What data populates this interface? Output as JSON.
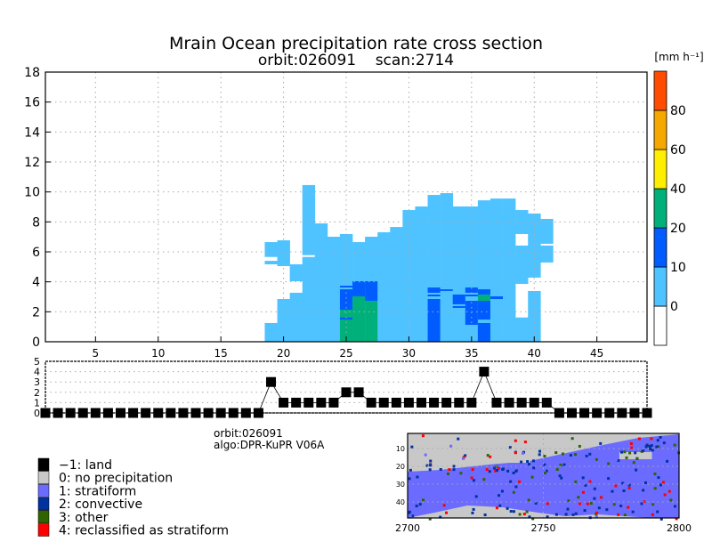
{
  "chart_data": [
    {
      "type": "heatmap",
      "title": "Mrain Ocean precipitation rate cross section",
      "subtitle": "orbit:026091    scan:2714",
      "xlim": [
        1,
        49
      ],
      "ylim": [
        0,
        18
      ],
      "xticks": [
        5,
        10,
        15,
        20,
        25,
        30,
        35,
        40,
        45
      ],
      "yticks": [
        0,
        2,
        4,
        6,
        8,
        10,
        12,
        14,
        16,
        18
      ],
      "grid": true,
      "colorbar": {
        "unit": "[mm h⁻¹]",
        "levels": [
          "0",
          "10",
          "20",
          "40",
          "60",
          "80"
        ],
        "colors": [
          "#ffffff",
          "#4fc3ff",
          "#005cff",
          "#00b07a",
          "#ffee00",
          "#f5a800",
          "#ff4c00"
        ]
      },
      "rate_classes": [
        "0-10",
        "10-20",
        "20-40"
      ],
      "columns": [
        {
          "bin": 19,
          "segments": [
            [
              0,
              1.25,
              0
            ],
            [
              5.17,
              5.4,
              0
            ],
            [
              5.66,
              6.65,
              0
            ]
          ]
        },
        {
          "bin": 20,
          "segments": [
            [
              0,
              2.85,
              0
            ],
            [
              5.05,
              6.77,
              0
            ]
          ]
        },
        {
          "bin": 21,
          "segments": [
            [
              0,
              3.27,
              0
            ],
            [
              4.04,
              5.17,
              0
            ]
          ]
        },
        {
          "bin": 22,
          "segments": [
            [
              0,
              5.66,
              0
            ],
            [
              5.78,
              10.46,
              0
            ]
          ]
        },
        {
          "bin": 23,
          "segments": [
            [
              0,
              7.9,
              0
            ]
          ]
        },
        {
          "bin": 24,
          "segments": [
            [
              0,
              7.01,
              0
            ]
          ]
        },
        {
          "bin": 25,
          "segments": [
            [
              0,
              7.19,
              0
            ],
            [
              3.62,
              3.74,
              1
            ],
            [
              2.14,
              3.5,
              1
            ],
            [
              0,
              2.14,
              2
            ],
            [
              1.48,
              1.62,
              1
            ]
          ]
        },
        {
          "bin": 26,
          "segments": [
            [
              0,
              6.65,
              0
            ],
            [
              3.03,
              4.04,
              1
            ],
            [
              0,
              3.03,
              2
            ]
          ]
        },
        {
          "bin": 27,
          "segments": [
            [
              0,
              7.01,
              0
            ],
            [
              2.73,
              4.04,
              1
            ],
            [
              0,
              2.73,
              2
            ]
          ]
        },
        {
          "bin": 28,
          "segments": [
            [
              0,
              7.31,
              0
            ]
          ]
        },
        {
          "bin": 29,
          "segments": [
            [
              0,
              7.66,
              0
            ]
          ]
        },
        {
          "bin": 30,
          "segments": [
            [
              0,
              8.79,
              0
            ]
          ]
        },
        {
          "bin": 31,
          "segments": [
            [
              0,
              9.03,
              0
            ]
          ]
        },
        {
          "bin": 32,
          "segments": [
            [
              0,
              9.8,
              0
            ],
            [
              3.27,
              3.62,
              1
            ],
            [
              3.03,
              3.15,
              1
            ],
            [
              0,
              2.85,
              1
            ]
          ]
        },
        {
          "bin": 33,
          "segments": [
            [
              0,
              9.92,
              0
            ],
            [
              3.39,
              3.5,
              1
            ]
          ]
        },
        {
          "bin": 34,
          "segments": [
            [
              0,
              9.03,
              0
            ],
            [
              2.5,
              3.15,
              1
            ],
            [
              2.26,
              2.38,
              1
            ]
          ]
        },
        {
          "bin": 35,
          "segments": [
            [
              0,
              9.03,
              0
            ],
            [
              3.27,
              3.62,
              1
            ],
            [
              3.03,
              3.15,
              1
            ],
            [
              1.13,
              2.73,
              1
            ]
          ]
        },
        {
          "bin": 36,
          "segments": [
            [
              0,
              9.44,
              0
            ],
            [
              3.15,
              3.5,
              1
            ],
            [
              2.73,
              3.15,
              2
            ],
            [
              1.48,
              2.73,
              1
            ],
            [
              0,
              1.25,
              1
            ]
          ]
        },
        {
          "bin": 37,
          "segments": [
            [
              0,
              9.56,
              0
            ],
            [
              2.85,
              3.03,
              1
            ]
          ]
        },
        {
          "bin": 38,
          "segments": [
            [
              0,
              9.56,
              0
            ]
          ]
        },
        {
          "bin": 39,
          "segments": [
            [
              0,
              1.62,
              0
            ],
            [
              3.86,
              6.42,
              0
            ],
            [
              7.19,
              8.79,
              0
            ]
          ]
        },
        {
          "bin": 40,
          "segments": [
            [
              0,
              3.39,
              0
            ],
            [
              4.28,
              8.56,
              0
            ]
          ]
        },
        {
          "bin": 41,
          "segments": [
            [
              5.29,
              6.42,
              0
            ],
            [
              6.54,
              8.2,
              0
            ]
          ]
        }
      ]
    },
    {
      "type": "line",
      "xlim": [
        1,
        49
      ],
      "ylim": [
        0,
        5
      ],
      "yticks": [
        0,
        1,
        2,
        3,
        4,
        5
      ],
      "grid": true,
      "x": [
        1,
        2,
        3,
        4,
        5,
        6,
        7,
        8,
        9,
        10,
        11,
        12,
        13,
        14,
        15,
        16,
        17,
        18,
        19,
        20,
        21,
        22,
        23,
        24,
        25,
        26,
        27,
        28,
        29,
        30,
        31,
        32,
        33,
        34,
        35,
        36,
        37,
        38,
        39,
        40,
        41,
        42,
        43,
        44,
        45,
        46,
        47,
        48,
        49
      ],
      "values": [
        0,
        0,
        0,
        0,
        0,
        0,
        0,
        0,
        0,
        0,
        0,
        0,
        0,
        0,
        0,
        0,
        0,
        0,
        3,
        1,
        1,
        1,
        1,
        1,
        2,
        2,
        1,
        1,
        1,
        1,
        1,
        1,
        1,
        1,
        1,
        4,
        1,
        1,
        1,
        1,
        1,
        0,
        0,
        0,
        0,
        0,
        0,
        0,
        0
      ]
    },
    {
      "type": "heatmap",
      "xlim": [
        2700,
        2800
      ],
      "ylim": [
        49,
        1
      ],
      "xticks": [
        2700,
        2750,
        2800
      ],
      "yticks": [
        10,
        20,
        30,
        40
      ],
      "grid": true
    }
  ],
  "info": {
    "orbit": "orbit:026091",
    "algo": "algo:DPR-KuPR V06A"
  },
  "legend": [
    {
      "label": "−1: land",
      "color": "#000000"
    },
    {
      "label": "0: no precipitation",
      "color": "#c8c8c8"
    },
    {
      "label": "1: stratiform",
      "color": "#6b6bff"
    },
    {
      "label": "2: convective",
      "color": "#0032a0"
    },
    {
      "label": "3: other",
      "color": "#2f6400"
    },
    {
      "label": "4: reclassified as stratiform",
      "color": "#ff0000"
    }
  ]
}
